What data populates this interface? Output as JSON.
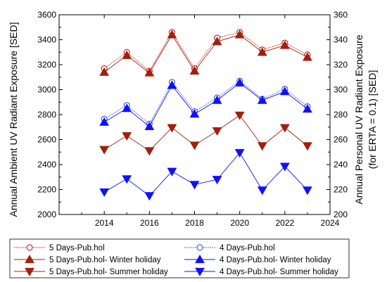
{
  "chart_data": {
    "type": "line",
    "x": [
      2014,
      2015,
      2016,
      2017,
      2018,
      2019,
      2020,
      2021,
      2022,
      2023
    ],
    "xlim": [
      2012,
      2024
    ],
    "xticks": [
      2014,
      2016,
      2018,
      2020,
      2022,
      2024
    ],
    "ylim_left": [
      2000,
      3600
    ],
    "yticks_left": [
      2000,
      2200,
      2400,
      2600,
      2800,
      3000,
      3200,
      3400,
      3600
    ],
    "ylim_right": [
      200,
      360
    ],
    "yticks_right": [
      200,
      220,
      240,
      260,
      280,
      300,
      320,
      340,
      360
    ],
    "ylabel_left": "Annual Ambient UV Radiant Exposure [SED]",
    "ylabel_right_line1": "Annual Personal UV Radiant Exposure",
    "ylabel_right_line2": "(for ERTA = 0.1) [SED]",
    "grid": false,
    "legend_position": "bottom",
    "series": [
      {
        "name": "5 Days-Pub.hol",
        "axis": "left",
        "color": "#c00000",
        "line": "dotted",
        "marker": "open-circle",
        "values": [
          3170,
          3300,
          3150,
          3460,
          3170,
          3415,
          3460,
          3320,
          3375,
          3280
        ]
      },
      {
        "name": "5 Days-Pub.hol- Winter holiday",
        "axis": "left",
        "color": "#a0200a",
        "line": "solid",
        "marker": "triangle-up",
        "values": [
          3140,
          3275,
          3135,
          3440,
          3150,
          3385,
          3440,
          3300,
          3355,
          3260
        ]
      },
      {
        "name": "5 Days-Pub.hol- Summer holiday",
        "axis": "left",
        "color": "#a0200a",
        "line": "solid",
        "marker": "triangle-down",
        "values": [
          2520,
          2630,
          2510,
          2695,
          2555,
          2670,
          2795,
          2550,
          2695,
          2550
        ]
      },
      {
        "name": "4 Days-Pub.hol",
        "axis": "left",
        "color": "#1f3fd0",
        "line": "dotted",
        "marker": "open-circle",
        "values": [
          2765,
          2875,
          2725,
          3060,
          2825,
          2935,
          3070,
          2925,
          3005,
          2865
        ]
      },
      {
        "name": "4 Days-Pub.hol- Winter holiday",
        "axis": "left",
        "color": "#1010ff",
        "line": "solid",
        "marker": "triangle-up",
        "values": [
          2740,
          2850,
          2705,
          3035,
          2805,
          2915,
          3055,
          2915,
          2985,
          2845
        ]
      },
      {
        "name": "4 Days-Pub.hol- Summer holiday",
        "axis": "left",
        "color": "#1010ff",
        "line": "solid",
        "marker": "triangle-down",
        "values": [
          2180,
          2285,
          2150,
          2345,
          2240,
          2280,
          2495,
          2195,
          2385,
          2195
        ]
      }
    ]
  }
}
